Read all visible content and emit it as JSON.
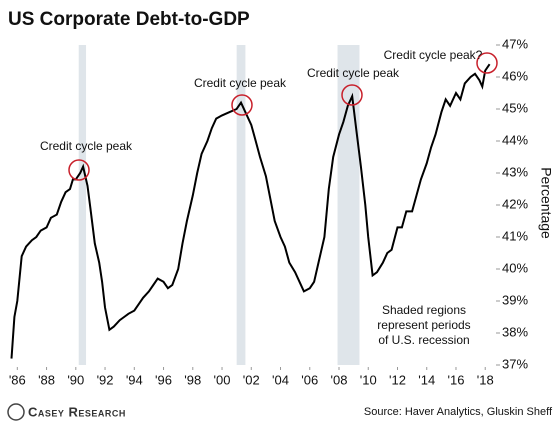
{
  "chart_data": {
    "type": "line",
    "title": "US Corporate Debt-to-GDP",
    "y_label": "Percentage",
    "x": [
      1985.6,
      1985.8,
      1986.0,
      1986.3,
      1986.6,
      1987.0,
      1987.3,
      1987.6,
      1988.0,
      1988.3,
      1988.7,
      1989.0,
      1989.3,
      1989.6,
      1989.8,
      1990.0,
      1990.3,
      1990.5,
      1990.8,
      1991.0,
      1991.3,
      1991.6,
      1991.8,
      1992.0,
      1992.3,
      1992.6,
      1993.0,
      1993.3,
      1993.6,
      1994.0,
      1994.3,
      1994.6,
      1995.0,
      1995.3,
      1995.6,
      1996.0,
      1996.3,
      1996.6,
      1997.0,
      1997.3,
      1997.6,
      1998.0,
      1998.3,
      1998.6,
      1999.0,
      1999.3,
      1999.6,
      2000.0,
      2000.5,
      2001.0,
      2001.3,
      2001.6,
      2002.0,
      2002.3,
      2002.6,
      2003.0,
      2003.3,
      2003.6,
      2004.0,
      2004.3,
      2004.6,
      2005.0,
      2005.3,
      2005.6,
      2006.0,
      2006.3,
      2006.6,
      2007.0,
      2007.3,
      2007.6,
      2008.0,
      2008.3,
      2008.6,
      2008.9,
      2009.2,
      2009.5,
      2009.8,
      2010.0,
      2010.3,
      2010.6,
      2011.0,
      2011.3,
      2011.6,
      2012.0,
      2012.3,
      2012.6,
      2013.0,
      2013.3,
      2013.6,
      2014.0,
      2014.3,
      2014.6,
      2015.0,
      2015.3,
      2015.6,
      2016.0,
      2016.3,
      2016.6,
      2017.0,
      2017.3,
      2017.6,
      2017.8,
      2018.0,
      2018.3
    ],
    "series": [
      {
        "name": "Corporate debt-to-GDP",
        "color": "#000000",
        "values": [
          37.2,
          38.5,
          39.0,
          40.4,
          40.7,
          40.9,
          41.0,
          41.2,
          41.3,
          41.6,
          41.7,
          42.1,
          42.4,
          42.5,
          42.8,
          42.8,
          43.0,
          43.2,
          42.6,
          41.9,
          40.8,
          40.2,
          39.6,
          38.8,
          38.1,
          38.2,
          38.4,
          38.5,
          38.6,
          38.7,
          38.9,
          39.1,
          39.3,
          39.5,
          39.7,
          39.6,
          39.4,
          39.5,
          40.0,
          40.8,
          41.5,
          42.3,
          43.0,
          43.6,
          44.0,
          44.4,
          44.7,
          44.8,
          44.9,
          45.0,
          45.2,
          44.9,
          44.5,
          44.0,
          43.5,
          42.9,
          42.2,
          41.5,
          41.0,
          40.7,
          40.2,
          39.9,
          39.6,
          39.3,
          39.4,
          39.6,
          40.2,
          41.0,
          42.5,
          43.5,
          44.2,
          44.6,
          45.1,
          45.4,
          44.3,
          43.2,
          42.0,
          41.0,
          39.8,
          39.9,
          40.2,
          40.5,
          40.6,
          41.3,
          41.3,
          41.8,
          41.8,
          42.3,
          42.8,
          43.3,
          43.8,
          44.2,
          44.9,
          45.3,
          45.1,
          45.5,
          45.3,
          45.8,
          46.0,
          46.1,
          45.9,
          45.7,
          46.2,
          46.4
        ]
      }
    ],
    "recessions": [
      [
        1990.2,
        1990.7
      ],
      [
        2001.0,
        2001.6
      ],
      [
        2007.9,
        2009.4
      ]
    ],
    "recession_color": "#dfe5ea",
    "xlim": [
      1985.5,
      2018.6
    ],
    "xticks": [
      {
        "value": 1986,
        "label": "'86"
      },
      {
        "value": 1988,
        "label": "'88"
      },
      {
        "value": 1990,
        "label": "'90"
      },
      {
        "value": 1992,
        "label": "'92"
      },
      {
        "value": 1994,
        "label": "'94"
      },
      {
        "value": 1996,
        "label": "'96"
      },
      {
        "value": 1998,
        "label": "'98"
      },
      {
        "value": 2000,
        "label": "'00"
      },
      {
        "value": 2002,
        "label": "'02"
      },
      {
        "value": 2004,
        "label": "'04"
      },
      {
        "value": 2006,
        "label": "'06"
      },
      {
        "value": 2008,
        "label": "'08"
      },
      {
        "value": 2010,
        "label": "'10"
      },
      {
        "value": 2012,
        "label": "'12"
      },
      {
        "value": 2014,
        "label": "'14"
      },
      {
        "value": 2016,
        "label": "'16"
      },
      {
        "value": 2018,
        "label": "'18"
      }
    ],
    "ylim": [
      37,
      47
    ],
    "yticks": [
      {
        "value": 37,
        "label": "37%"
      },
      {
        "value": 38,
        "label": "38%"
      },
      {
        "value": 39,
        "label": "39%"
      },
      {
        "value": 40,
        "label": "40%"
      },
      {
        "value": 41,
        "label": "41%"
      },
      {
        "value": 42,
        "label": "42%"
      },
      {
        "value": 43,
        "label": "43%"
      },
      {
        "value": 44,
        "label": "44%"
      },
      {
        "value": 45,
        "label": "45%"
      },
      {
        "value": 46,
        "label": "46%"
      },
      {
        "value": 47,
        "label": "47%"
      }
    ],
    "annotations": [
      "Credit cycle peak",
      "Credit cycle peak",
      "Credit cycle peak",
      "Credit cycle peak?"
    ],
    "note": [
      "Shaded regions",
      "represent periods",
      "of U.S. recession"
    ],
    "logo": "Casey Research",
    "source": "Source: Haver Analytics, Gluskin Sheff"
  }
}
